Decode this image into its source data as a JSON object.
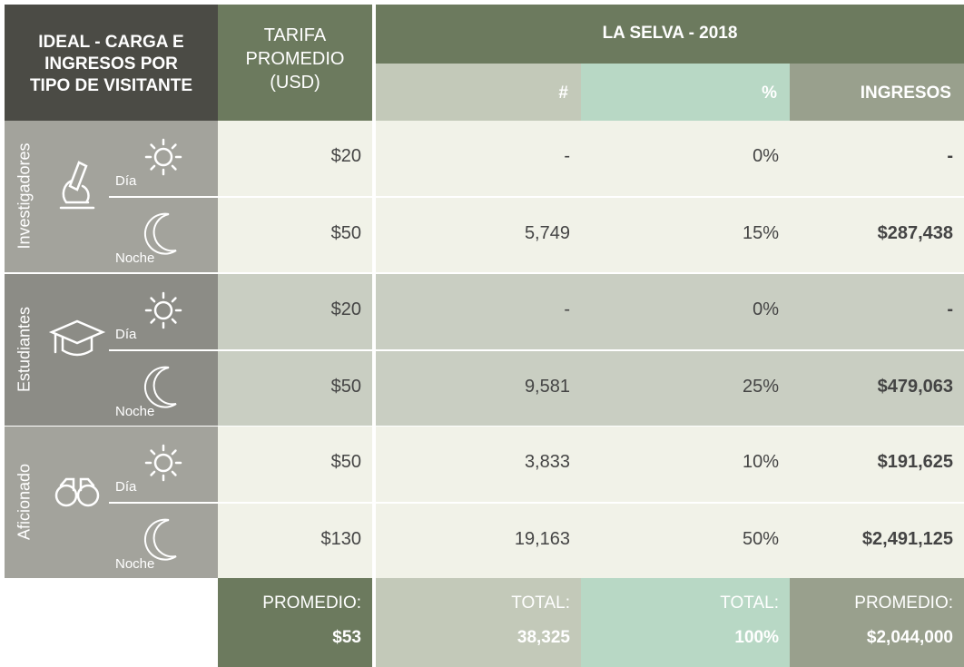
{
  "header": {
    "title": [
      "IDEAL - CARGA E",
      "INGRESOS POR",
      "TIPO DE VISITANTE"
    ],
    "rate": [
      "TARIFA",
      "PROMEDIO",
      "(USD)"
    ],
    "group": "LA SELVA - 2018",
    "columns": [
      "#",
      "%",
      "INGRESOS"
    ]
  },
  "table": {
    "groups": [
      {
        "label": "Investigadores",
        "rows": [
          {
            "period": "Día",
            "rate": "$20",
            "count": "-",
            "share": "0%",
            "income": "-"
          },
          {
            "period": "Noche",
            "rate": "$50",
            "count": "5,749",
            "share": "15%",
            "income": "$287,438"
          }
        ]
      },
      {
        "label": "Estudiantes",
        "rows": [
          {
            "period": "Día",
            "rate": "$20",
            "count": "-",
            "share": "0%",
            "income": "-"
          },
          {
            "period": "Noche",
            "rate": "$50",
            "count": "9,581",
            "share": "25%",
            "income": "$479,063"
          }
        ]
      },
      {
        "label": "Aficionado",
        "rows": [
          {
            "period": "Día",
            "rate": "$50",
            "count": "3,833",
            "share": "10%",
            "income": "$191,625"
          },
          {
            "period": "Noche",
            "rate": "$130",
            "count": "19,163",
            "share": "50%",
            "income": "$2,491,125"
          }
        ]
      }
    ]
  },
  "footer": {
    "rate": {
      "label": "PROMEDIO:",
      "value": "$53"
    },
    "count": {
      "label": "TOTAL:",
      "value": "38,325"
    },
    "share": {
      "label": "TOTAL:",
      "value": "100%"
    },
    "income": {
      "label": "PROMEDIO:",
      "value": "$2,044,000"
    }
  }
}
